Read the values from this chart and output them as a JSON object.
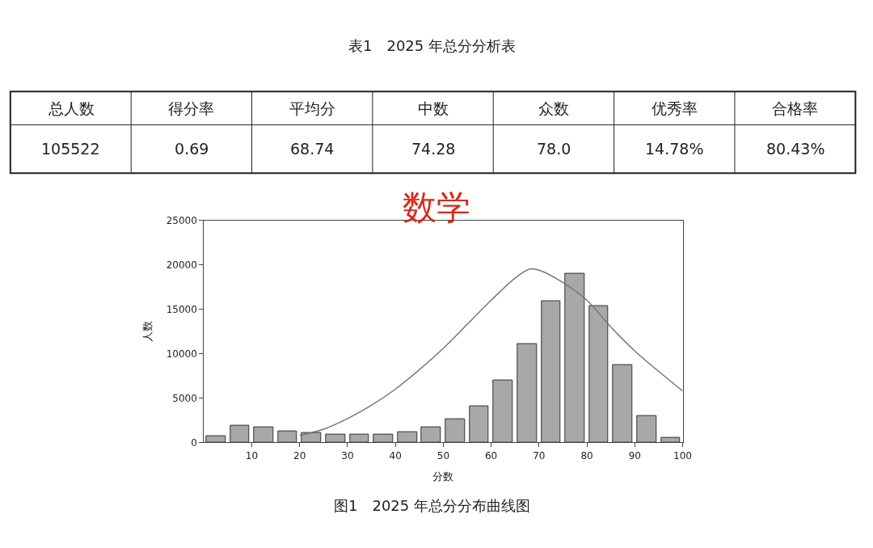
{
  "chart_data": {
    "type": "histogram",
    "title": "数学",
    "xlabel": "分数",
    "ylabel": "人数",
    "bins": [
      0,
      5,
      10,
      15,
      20,
      25,
      30,
      35,
      40,
      45,
      50,
      55,
      60,
      65,
      70,
      75,
      80,
      85,
      90,
      95,
      100
    ],
    "values": [
      700,
      1900,
      1700,
      1300,
      1100,
      900,
      900,
      900,
      1200,
      1700,
      2600,
      4100,
      7000,
      11100,
      15900,
      19000,
      15400,
      8700,
      3000,
      500
    ],
    "color": "#a8a8a8",
    "series": [
      {
        "type": "line",
        "color": "#777777",
        "x": [
          20,
          25,
          30,
          35,
          40,
          45,
          50,
          55,
          60,
          65,
          68,
          70,
          75,
          80,
          85,
          90,
          95,
          100
        ],
        "values": [
          800,
          1500,
          2700,
          4200,
          6000,
          8200,
          10600,
          13300,
          16000,
          18500,
          19500,
          19400,
          18000,
          16000,
          13000,
          10300,
          8000,
          5800
        ]
      }
    ],
    "xlim": [
      0,
      100
    ],
    "xticks": [
      10,
      20,
      30,
      40,
      50,
      60,
      70,
      80,
      90,
      100
    ],
    "ylim": [
      0,
      25000
    ],
    "yticks": [
      0,
      5000,
      10000,
      15000,
      20000,
      25000
    ],
    "annotations": [
      "表1　2025 年总分分析表",
      "总人数",
      "得分率",
      "平均分",
      "中数",
      "众数",
      "优秀率",
      "合格率",
      "105522",
      "0.69",
      "68.74",
      "74.28",
      "78.0",
      "14.78%",
      "80.43%",
      "图1　2025 年总分分布曲线图"
    ]
  }
}
